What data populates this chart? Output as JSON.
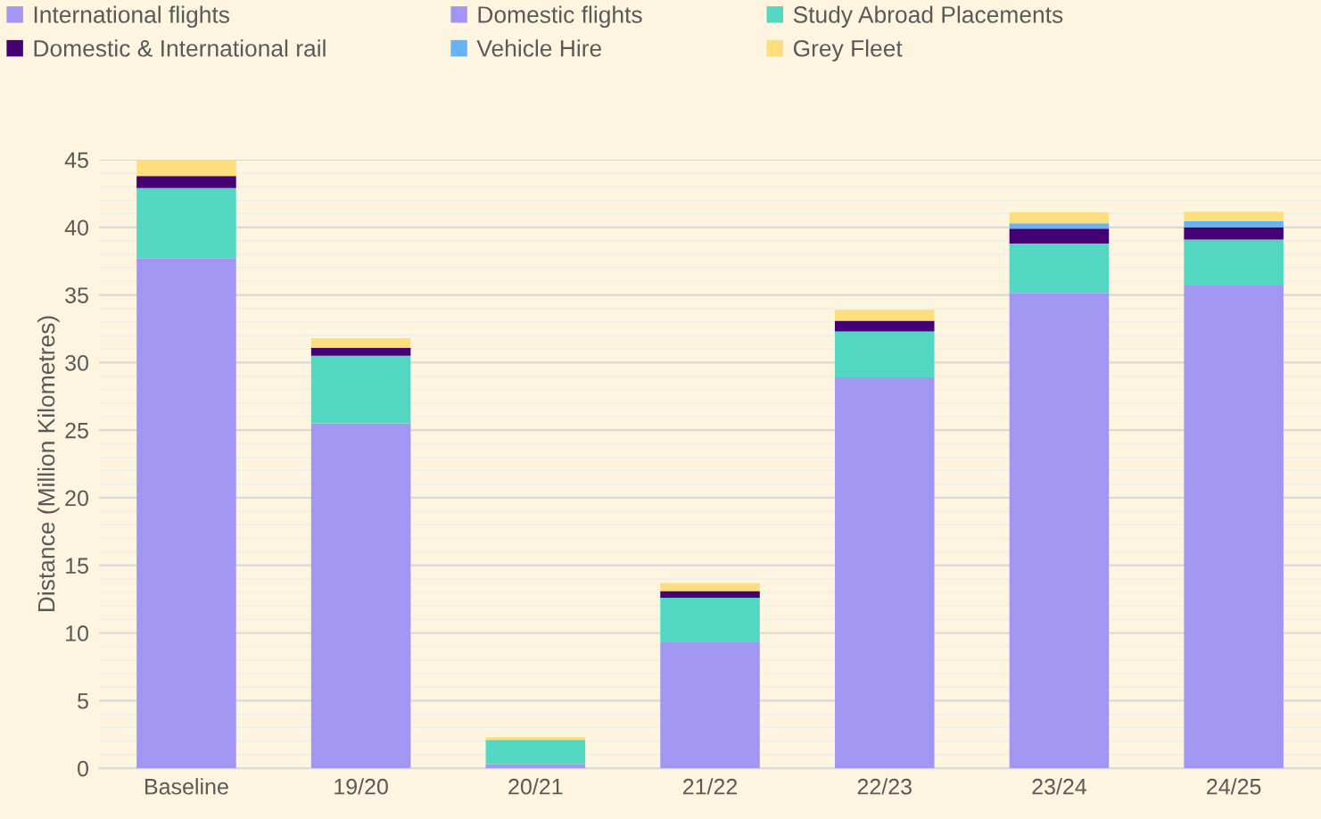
{
  "chart_data": {
    "type": "bar",
    "stacked": true,
    "ylabel": "Distance (Million Kilometres)",
    "categories": [
      "Baseline",
      "19/20",
      "20/21",
      "21/22",
      "22/23",
      "23/24",
      "24/25"
    ],
    "series": [
      {
        "name": "International flights",
        "color": "#a197f2",
        "values": [
          37.7,
          25.5,
          0.3,
          9.3,
          28.9,
          35.15,
          35.7
        ]
      },
      {
        "name": "Domestic flights",
        "color": "#a197f2",
        "values": [
          0,
          0,
          0,
          0,
          0,
          0,
          0
        ]
      },
      {
        "name": "Study Abroad Placements",
        "color": "#53d6c2",
        "values": [
          5.2,
          5.0,
          1.8,
          3.3,
          3.4,
          3.65,
          3.4
        ]
      },
      {
        "name": "Domestic & International rail",
        "color": "#440074",
        "values": [
          0.9,
          0.6,
          0,
          0.5,
          0.8,
          1.1,
          0.9
        ]
      },
      {
        "name": "Vehicle Hire",
        "color": "#66b3f5",
        "values": [
          0,
          0,
          0,
          0,
          0,
          0.4,
          0.45
        ]
      },
      {
        "name": "Grey Fleet",
        "color": "#fedd7c",
        "values": [
          1.2,
          0.7,
          0.2,
          0.6,
          0.8,
          0.8,
          0.7
        ]
      }
    ],
    "ylim": [
      0,
      45
    ],
    "yticks": [
      0,
      5,
      10,
      15,
      20,
      25,
      30,
      35,
      40,
      45
    ],
    "grid": "y",
    "legend": "top"
  }
}
